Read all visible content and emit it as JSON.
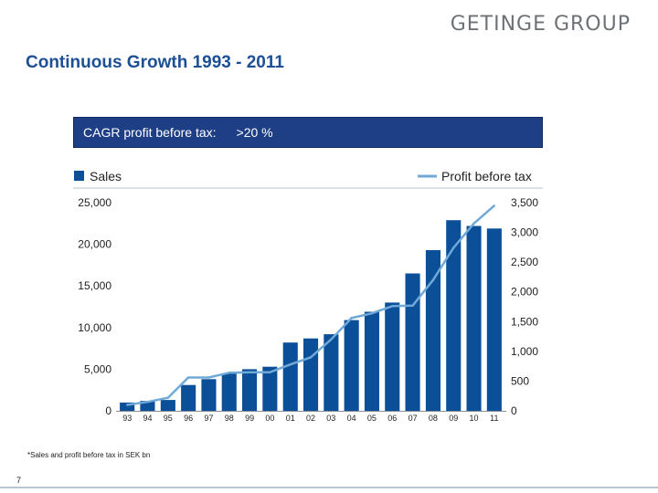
{
  "header": {
    "logo": "GETINGE GROUP",
    "title": "Continuous Growth 1993 - 2011"
  },
  "cagr": {
    "label": "CAGR profit before tax:",
    "value": ">20 %"
  },
  "footnote": "*Sales and profit before tax in SEK bn",
  "page_number": "7",
  "colors": {
    "bar": "#0b4f98",
    "line": "#70a9d8",
    "title": "#1d4f94",
    "box": "#1e3f86"
  },
  "chart_data": {
    "type": "bar",
    "categories": [
      "93",
      "94",
      "95",
      "96",
      "97",
      "98",
      "99",
      "00",
      "01",
      "02",
      "03",
      "04",
      "05",
      "06",
      "07",
      "08",
      "09",
      "10",
      "11"
    ],
    "series": [
      {
        "name": "Sales",
        "type": "bar",
        "axis": "left",
        "values": [
          1000,
          1200,
          1300,
          3100,
          3800,
          4500,
          5000,
          5300,
          8200,
          8700,
          9200,
          10900,
          11900,
          13000,
          16500,
          19300,
          22900,
          22200,
          21900
        ]
      },
      {
        "name": "Profit before tax",
        "type": "line",
        "axis": "right",
        "values": [
          100,
          150,
          220,
          560,
          560,
          640,
          650,
          650,
          780,
          900,
          1200,
          1560,
          1640,
          1760,
          1770,
          2200,
          2740,
          3150,
          3450
        ]
      }
    ],
    "y_left": {
      "ylim": [
        0,
        25000
      ],
      "ticks": [
        "0",
        "5,000",
        "10,000",
        "15,000",
        "20,000",
        "25,000"
      ]
    },
    "y_right": {
      "ylim": [
        0,
        3500
      ],
      "ticks": [
        "0",
        "500",
        "1,000",
        "1,500",
        "2,000",
        "2,500",
        "3,000",
        "3,500"
      ]
    },
    "legend_placement": "top",
    "grid": false
  }
}
